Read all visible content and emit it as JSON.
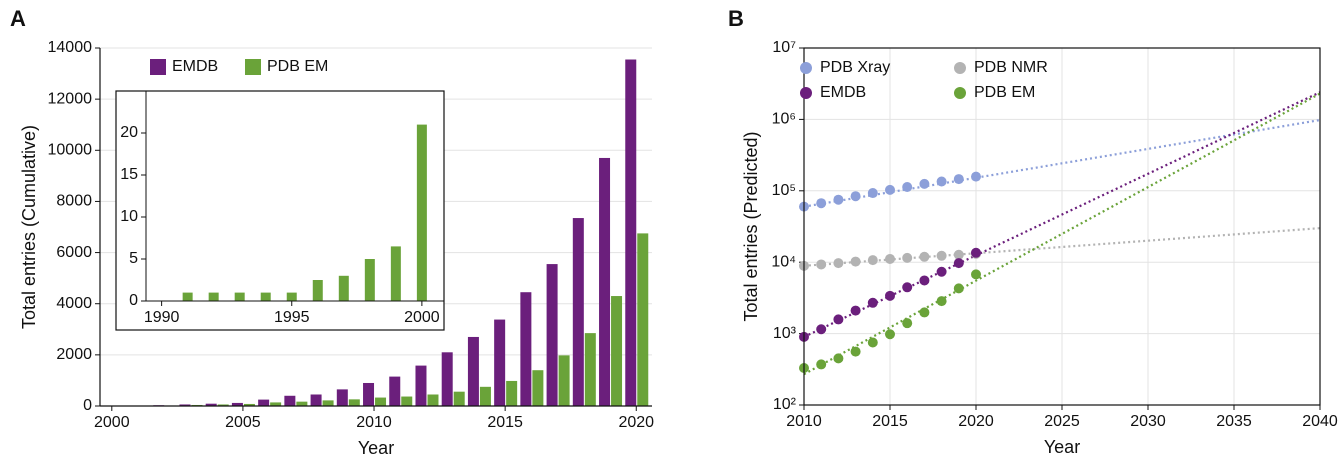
{
  "chart_data": [
    {
      "type": "bar",
      "label": "A",
      "x": [
        2002,
        2003,
        2004,
        2005,
        2006,
        2007,
        2008,
        2009,
        2010,
        2011,
        2012,
        2013,
        2014,
        2015,
        2016,
        2017,
        2018,
        2019,
        2020
      ],
      "series": [
        {
          "name": "EMDB",
          "color": "#6b1f7c",
          "values": [
            30,
            60,
            90,
            120,
            250,
            400,
            450,
            650,
            900,
            1150,
            1580,
            2100,
            2700,
            3380,
            4450,
            5550,
            7350,
            9700,
            13550
          ]
        },
        {
          "name": "PDB EM",
          "color": "#6aa339",
          "values": [
            20,
            40,
            60,
            80,
            140,
            170,
            220,
            260,
            330,
            370,
            450,
            560,
            750,
            980,
            1400,
            1980,
            2850,
            4300,
            6750
          ]
        }
      ],
      "xlabel": "Year",
      "ylabel": "Total entries (Cumulative)",
      "xlim": [
        1999.55,
        2020.6
      ],
      "xticks": [
        2000,
        2005,
        2010,
        2015,
        2020
      ],
      "ylim": [
        0,
        14000
      ],
      "yticks": [
        0,
        2000,
        4000,
        6000,
        8000,
        10000,
        12000,
        14000
      ],
      "grid": true,
      "legend": "upper left"
    },
    {
      "type": "bar",
      "x": [
        1991,
        1992,
        1993,
        1994,
        1995,
        1996,
        1997,
        1998,
        1999,
        2000
      ],
      "values": [
        1,
        1,
        1,
        1,
        1,
        2.5,
        3,
        5,
        6.5,
        21
      ],
      "color": "#6aa339",
      "xlim": [
        1989.4,
        2000.85
      ],
      "xticks": [
        1990,
        1995,
        2000
      ],
      "ylim": [
        0,
        25
      ],
      "yticks": [
        0,
        5,
        10,
        15,
        20
      ],
      "grid": false
    },
    {
      "type": "scatter",
      "label": "B",
      "x": [
        2010,
        2011,
        2012,
        2013,
        2014,
        2015,
        2016,
        2017,
        2018,
        2019,
        2020
      ],
      "series": [
        {
          "name": "PDB Xray",
          "color": "#8c9fd9",
          "values": [
            60000,
            67000,
            75000,
            84000,
            93000,
            103000,
            113000,
            125000,
            135000,
            146000,
            158000
          ],
          "trend": {
            "x": [
              2010,
              2040
            ],
            "values": [
              60000,
              980000
            ]
          }
        },
        {
          "name": "PDB NMR",
          "color": "#b3b3b3",
          "values": [
            8900,
            9300,
            9700,
            10200,
            10700,
            11100,
            11500,
            11900,
            12300,
            12700,
            13100
          ],
          "trend": {
            "x": [
              2010,
              2040
            ],
            "values": [
              8900,
              30000
            ]
          }
        },
        {
          "name": "EMDB",
          "color": "#6b1f7c",
          "values": [
            900,
            1150,
            1580,
            2100,
            2700,
            3380,
            4450,
            5550,
            7350,
            9700,
            13550
          ],
          "trend": {
            "x": [
              2010,
              2040
            ],
            "values": [
              900,
              2400000
            ]
          }
        },
        {
          "name": "PDB EM",
          "color": "#6aa339",
          "values": [
            330,
            370,
            450,
            560,
            750,
            980,
            1400,
            1980,
            2850,
            4300,
            6750
          ],
          "trend": {
            "x": [
              2010,
              2040
            ],
            "values": [
              270,
              2300000
            ]
          }
        }
      ],
      "xlabel": "Year",
      "ylabel": "Total entries (Predicted)",
      "xlim": [
        2010,
        2040
      ],
      "xticks": [
        2010,
        2015,
        2020,
        2025,
        2030,
        2035,
        2040
      ],
      "ylim": [
        100,
        10000000
      ],
      "yticks": [
        {
          "value": 100,
          "label": "10²"
        },
        {
          "value": 1000,
          "label": "10³"
        },
        {
          "value": 10000,
          "label": "10⁴"
        },
        {
          "value": 100000,
          "label": "10⁵"
        },
        {
          "value": 1000000,
          "label": "10⁶"
        },
        {
          "value": 10000000,
          "label": "10⁷"
        }
      ],
      "log_y": true,
      "grid": true,
      "legend": "upper left"
    }
  ]
}
